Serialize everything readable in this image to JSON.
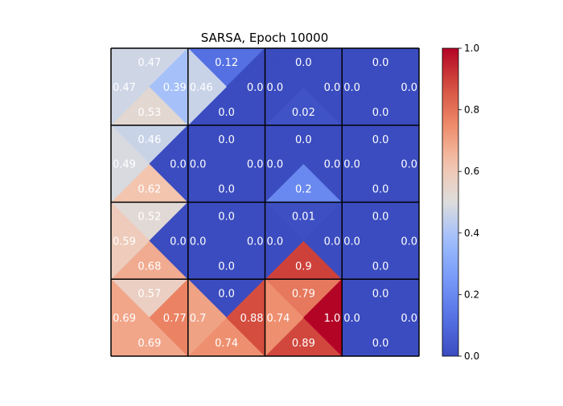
{
  "chart_data": {
    "type": "heatmap",
    "title": "SARSA, Epoch 10000",
    "grid_rows": 4,
    "grid_cols": 4,
    "cell_order": "row-major from top-left; each cell gives action values for [up, left, right, down] triangles",
    "cells": [
      [
        {
          "up": 0.47,
          "left": 0.47,
          "right": 0.39,
          "down": 0.53
        },
        {
          "up": 0.12,
          "left": 0.46,
          "right": 0.0,
          "down": 0.0
        },
        {
          "up": 0.0,
          "left": 0.0,
          "right": 0.0,
          "down": 0.02
        },
        {
          "up": 0.0,
          "left": 0.0,
          "right": 0.0,
          "down": 0.0
        }
      ],
      [
        {
          "up": 0.46,
          "left": 0.49,
          "right": 0.0,
          "down": 0.62
        },
        {
          "up": 0.0,
          "left": 0.0,
          "right": 0.0,
          "down": 0.0
        },
        {
          "up": 0.0,
          "left": 0.0,
          "right": 0.0,
          "down": 0.2
        },
        {
          "up": 0.0,
          "left": 0.0,
          "right": 0.0,
          "down": 0.0
        }
      ],
      [
        {
          "up": 0.52,
          "left": 0.59,
          "right": 0.0,
          "down": 0.68
        },
        {
          "up": 0.0,
          "left": 0.0,
          "right": 0.0,
          "down": 0.0
        },
        {
          "up": 0.01,
          "left": 0.0,
          "right": 0.0,
          "down": 0.9
        },
        {
          "up": 0.0,
          "left": 0.0,
          "right": 0.0,
          "down": 0.0
        }
      ],
      [
        {
          "up": 0.57,
          "left": 0.69,
          "right": 0.77,
          "down": 0.69
        },
        {
          "up": 0.0,
          "left": 0.7,
          "right": 0.88,
          "down": 0.74
        },
        {
          "up": 0.79,
          "left": 0.74,
          "right": 1.0,
          "down": 0.89
        },
        {
          "up": 0.0,
          "left": 0.0,
          "right": 0.0,
          "down": 0.0
        }
      ]
    ],
    "colorbar": {
      "colormap": "coolwarm",
      "vmin": 0.0,
      "vmax": 1.0,
      "ticks": [
        0.0,
        0.2,
        0.4,
        0.6,
        0.8,
        1.0
      ],
      "tick_labels": [
        "0.0",
        "0.2",
        "0.4",
        "0.6",
        "0.8",
        "1.0"
      ]
    }
  }
}
